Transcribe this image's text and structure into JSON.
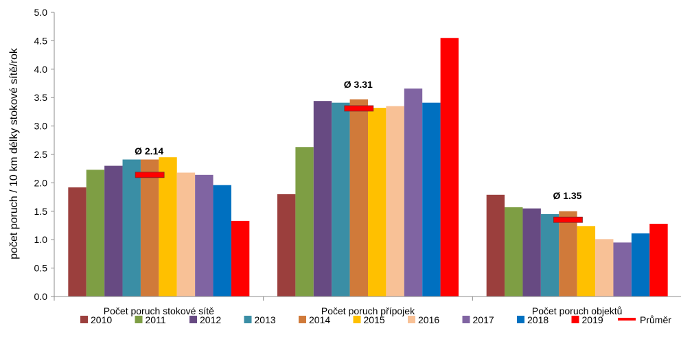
{
  "chart_data": {
    "type": "bar",
    "ylabel": "počet poruch / 10 km délky stokové sítě/rok",
    "ylim": [
      0,
      5.0
    ],
    "yticks": [
      "0.0",
      "0.5",
      "1.0",
      "1.5",
      "2.0",
      "2.5",
      "3.0",
      "3.5",
      "4.0",
      "4.5",
      "5.0"
    ],
    "categories": [
      "Počet poruch stokové sítě",
      "Počet poruch přípojek",
      "Počet poruch objektů"
    ],
    "series": [
      {
        "name": "2010",
        "color": "#9b3f3d",
        "values": [
          1.92,
          1.8,
          1.79
        ]
      },
      {
        "name": "2011",
        "color": "#7e9e44",
        "values": [
          2.23,
          2.63,
          1.57
        ]
      },
      {
        "name": "2012",
        "color": "#674a82",
        "values": [
          2.3,
          3.44,
          1.55
        ]
      },
      {
        "name": "2013",
        "color": "#3a8ea5",
        "values": [
          2.41,
          3.41,
          1.45
        ]
      },
      {
        "name": "2014",
        "color": "#d07a3a",
        "values": [
          2.41,
          3.47,
          1.5
        ]
      },
      {
        "name": "2015",
        "color": "#ffc000",
        "values": [
          2.45,
          3.32,
          1.24
        ]
      },
      {
        "name": "2016",
        "color": "#f8c196",
        "values": [
          2.18,
          3.35,
          1.01
        ]
      },
      {
        "name": "2017",
        "color": "#8064a2",
        "values": [
          2.14,
          3.66,
          0.95
        ]
      },
      {
        "name": "2018",
        "color": "#0070c0",
        "values": [
          1.96,
          3.41,
          1.11
        ]
      },
      {
        "name": "2019",
        "color": "#ff0000",
        "values": [
          1.33,
          4.55,
          1.28
        ]
      }
    ],
    "averages": {
      "name": "Průměr",
      "color": "#ff0000",
      "values": [
        2.14,
        3.31,
        1.35
      ],
      "labels": [
        "Ø 2.14",
        "Ø 3.31",
        "Ø 1.35"
      ]
    },
    "grid": false,
    "legend_position": "bottom"
  }
}
